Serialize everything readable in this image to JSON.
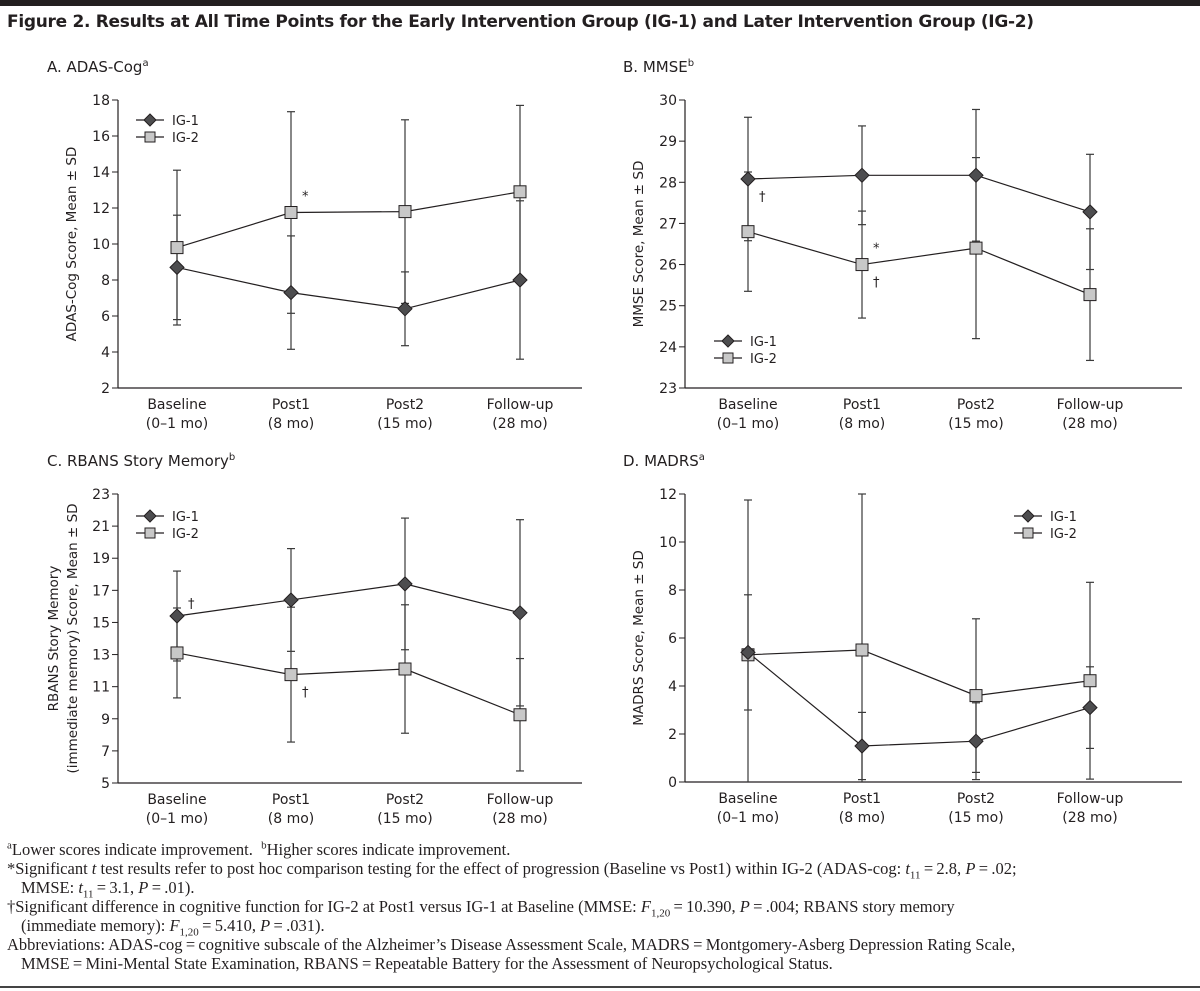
{
  "figure": {
    "title": "Figure 2. Results at All Time Points for the Early Intervention Group (IG-1) and Later Intervention Group (IG-2)"
  },
  "chart_data": [
    {
      "type": "line",
      "id": "A",
      "title": "A. ADAS-Cog",
      "title_superscript": "a",
      "ylabel": "ADAS-Cog Score, Mean ± SD",
      "ylabel_line2": "",
      "xlabel": "",
      "ylim": [
        2,
        18
      ],
      "yticks": [
        2,
        4,
        6,
        8,
        10,
        12,
        14,
        16,
        18
      ],
      "categories": [
        "Baseline",
        "Post1",
        "Post2",
        "Follow-up"
      ],
      "category_sublabels": [
        "(0–1 mo)",
        "(8 mo)",
        "(15 mo)",
        "(28 mo)"
      ],
      "legend": "top-left",
      "grid": false,
      "series": [
        {
          "name": "IG-1",
          "marker": "diamond",
          "values": [
            8.7,
            7.3,
            6.4,
            8.0
          ],
          "sd": [
            2.9,
            3.15,
            2.05,
            4.4
          ]
        },
        {
          "name": "IG-2",
          "marker": "square",
          "values": [
            9.8,
            11.75,
            11.8,
            12.9
          ],
          "sd": [
            4.3,
            5.6,
            5.1,
            4.8
          ]
        }
      ],
      "annotations": [
        {
          "text": "*",
          "series": "IG-2",
          "category": "Post1",
          "position": "above-right"
        }
      ]
    },
    {
      "type": "line",
      "id": "B",
      "title": "B. MMSE",
      "title_superscript": "b",
      "ylabel": "MMSE Score, Mean ± SD",
      "ylabel_line2": "",
      "xlabel": "",
      "ylim": [
        23,
        30
      ],
      "yticks": [
        23,
        24,
        25,
        26,
        27,
        28,
        29,
        30
      ],
      "categories": [
        "Baseline",
        "Post1",
        "Post2",
        "Follow-up"
      ],
      "category_sublabels": [
        "(0–1 mo)",
        "(8 mo)",
        "(15 mo)",
        "(28 mo)"
      ],
      "legend": "bottom-left",
      "grid": false,
      "series": [
        {
          "name": "IG-1",
          "marker": "diamond",
          "values": [
            28.08,
            28.17,
            28.17,
            27.28
          ],
          "sd": [
            1.5,
            1.2,
            1.6,
            1.4
          ]
        },
        {
          "name": "IG-2",
          "marker": "square",
          "values": [
            26.8,
            26.0,
            26.4,
            25.27
          ],
          "sd": [
            1.45,
            1.3,
            2.2,
            1.6
          ]
        }
      ],
      "annotations": [
        {
          "text": "†",
          "series": "IG-1",
          "category": "Baseline",
          "position": "below-right"
        },
        {
          "text": "*",
          "series": "IG-2",
          "category": "Post1",
          "position": "above-right"
        },
        {
          "text": "†",
          "series": "IG-2",
          "category": "Post1",
          "position": "below-right"
        }
      ]
    },
    {
      "type": "line",
      "id": "C",
      "title": "C. RBANS Story Memory",
      "title_superscript": "b",
      "ylabel": "RBANS Story Memory",
      "ylabel_line2": "(immediate memory) Score, Mean ± SD",
      "xlabel": "",
      "ylim": [
        5,
        23
      ],
      "yticks": [
        5,
        7,
        9,
        11,
        13,
        15,
        17,
        19,
        21,
        23
      ],
      "categories": [
        "Baseline",
        "Post1",
        "Post2",
        "Follow-up"
      ],
      "category_sublabels": [
        "(0–1 mo)",
        "(8 mo)",
        "(15 mo)",
        "(28 mo)"
      ],
      "legend": "top-left",
      "grid": false,
      "series": [
        {
          "name": "IG-1",
          "marker": "diamond",
          "values": [
            15.4,
            16.4,
            17.4,
            15.6
          ],
          "sd": [
            2.8,
            3.2,
            4.1,
            5.8
          ]
        },
        {
          "name": "IG-2",
          "marker": "square",
          "values": [
            13.1,
            11.75,
            12.1,
            9.25
          ],
          "sd": [
            2.8,
            4.2,
            4.0,
            3.5
          ]
        }
      ],
      "annotations": [
        {
          "text": "†",
          "series": "IG-1",
          "category": "Baseline",
          "position": "above-right"
        },
        {
          "text": "†",
          "series": "IG-2",
          "category": "Post1",
          "position": "below-right"
        }
      ]
    },
    {
      "type": "line",
      "id": "D",
      "title": "D. MADRS",
      "title_superscript": "a",
      "ylabel": "MADRS Score, Mean ± SD",
      "ylabel_line2": "",
      "xlabel": "",
      "ylim": [
        0,
        12
      ],
      "yticks": [
        0,
        2,
        4,
        6,
        8,
        10,
        12
      ],
      "categories": [
        "Baseline",
        "Post1",
        "Post2",
        "Follow-up"
      ],
      "category_sublabels": [
        "(0–1 mo)",
        "(8 mo)",
        "(15 mo)",
        "(28 mo)"
      ],
      "legend": "top-right",
      "grid": false,
      "series": [
        {
          "name": "IG-1",
          "marker": "diamond",
          "values": [
            5.4,
            1.5,
            1.7,
            3.1
          ],
          "sd": [
            2.4,
            1.4,
            1.6,
            1.7
          ]
        },
        {
          "name": "IG-2",
          "marker": "square",
          "values": [
            5.3,
            5.5,
            3.6,
            4.22
          ],
          "sd": [
            6.45,
            6.6,
            3.2,
            4.1
          ]
        }
      ],
      "annotations": []
    }
  ],
  "footnotes": {
    "a_mark": "a",
    "a_text": "Lower scores indicate improvement.",
    "b_mark": "b",
    "b_text": "Higher scores indicate improvement.",
    "star_line1_pre": "*Significant ",
    "star_t": "t",
    "star_line1_mid": " test results refer to post hoc comparison testing for the effect of progression (Baseline vs Post1) within IG-2 (ADAS-cog: ",
    "star_t2": "t",
    "star_sub1": "11",
    "star_line1_val": " = 2.8, ",
    "star_P1": "P",
    "star_line1_end": " = .02;",
    "star_line2_pre": "MMSE: ",
    "star_t3": "t",
    "star_sub2": "11",
    "star_line2_val": " = 3.1, ",
    "star_P2": "P",
    "star_line2_end": " = .01).",
    "dagger_line1_pre": "†Significant difference in cognitive function for IG-2 at Post1 versus IG-1 at Baseline (MMSE: ",
    "dagger_F1": "F",
    "dagger_sub1": "1,20",
    "dagger_line1_val": " = 10.390, ",
    "dagger_P1": "P",
    "dagger_line1_end": " = .004; RBANS story memory",
    "dagger_line2_pre": "(immediate memory): ",
    "dagger_F2": "F",
    "dagger_sub2": "1,20",
    "dagger_line2_val": " = 5.410, ",
    "dagger_P2": "P",
    "dagger_line2_end": " = .031).",
    "abbrev_line1": "Abbreviations: ADAS-cog = cognitive subscale of the Alzheimer’s Disease Assessment Scale, MADRS = Montgomery-Asberg Depression Rating Scale,",
    "abbrev_line2": "MMSE = Mini-Mental State Examination, RBANS = Repeatable Battery for the Assessment of Neuropsychological Status."
  },
  "colors": {
    "ink": "#231f20",
    "ig1_fill": "#4d4d4f",
    "ig2_fill": "#c8c8c8",
    "marker_stroke": "#231f20"
  }
}
